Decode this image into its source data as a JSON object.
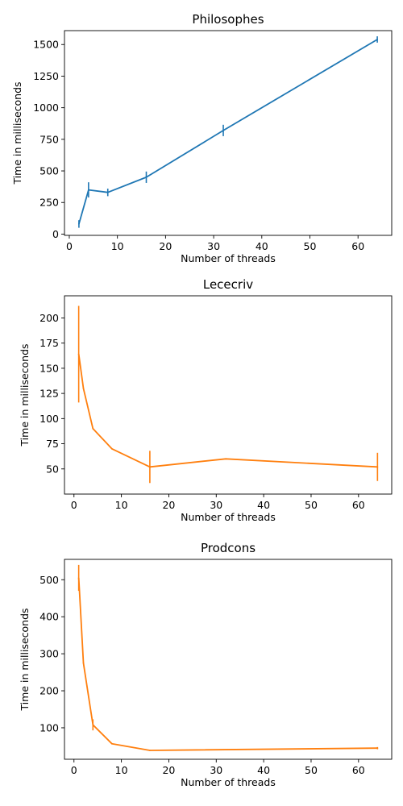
{
  "chart_data": [
    {
      "type": "line",
      "title": "Philosophes",
      "xlabel": "Number of threads",
      "ylabel": "Time in milliseconds",
      "xlim": [
        -1,
        67
      ],
      "ylim": [
        -10,
        1610
      ],
      "xticks": [
        0,
        10,
        20,
        30,
        40,
        50,
        60
      ],
      "yticks": [
        0,
        250,
        500,
        750,
        1000,
        1250,
        1500
      ],
      "grid": false,
      "color": "#1f77b4",
      "series": [
        {
          "x": [
            2,
            4,
            8,
            16,
            32,
            64
          ],
          "y": [
            80,
            350,
            330,
            450,
            820,
            1540
          ],
          "err": [
            30,
            60,
            30,
            45,
            45,
            25
          ]
        }
      ]
    },
    {
      "type": "line",
      "title": "Lececriv",
      "xlabel": "Number of threads",
      "ylabel": "Time in milliseconds",
      "xlim": [
        -2,
        67
      ],
      "ylim": [
        25,
        222
      ],
      "xticks": [
        0,
        10,
        20,
        30,
        40,
        50,
        60
      ],
      "yticks": [
        50,
        75,
        100,
        125,
        150,
        175,
        200
      ],
      "grid": false,
      "color": "#ff7f0e",
      "series": [
        {
          "x": [
            1,
            2,
            4,
            8,
            16,
            32,
            64
          ],
          "y": [
            164,
            130,
            90,
            70,
            52,
            60,
            52
          ],
          "err": [
            48,
            0,
            0,
            0,
            16,
            0,
            14
          ]
        }
      ]
    },
    {
      "type": "line",
      "title": "Prodcons",
      "xlabel": "Number of threads",
      "ylabel": "Time in milliseconds",
      "xlim": [
        -2,
        67
      ],
      "ylim": [
        15,
        555
      ],
      "xticks": [
        0,
        10,
        20,
        30,
        40,
        50,
        60
      ],
      "yticks": [
        100,
        200,
        300,
        400,
        500
      ],
      "grid": false,
      "color": "#ff7f0e",
      "series": [
        {
          "x": [
            1,
            2,
            4,
            8,
            16,
            64
          ],
          "y": [
            505,
            275,
            108,
            57,
            39,
            45
          ],
          "err": [
            35,
            0,
            15,
            0,
            0,
            3
          ]
        }
      ]
    }
  ]
}
